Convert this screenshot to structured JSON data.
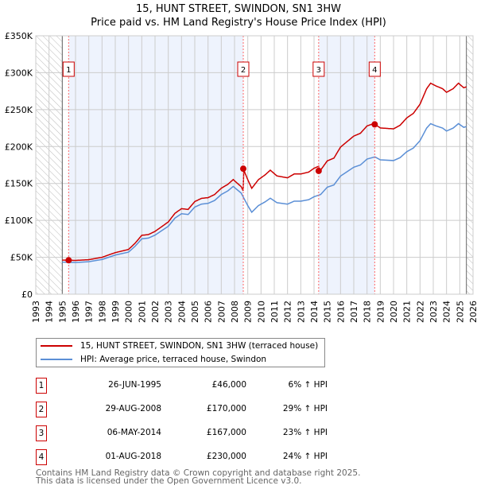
{
  "title": "15, HUNT STREET, SWINDON, SN1 3HW",
  "subtitle": "Price paid vs. HM Land Registry's House Price Index (HPI)",
  "colors": {
    "property": "#cc0000",
    "hpi": "#5b8fd6",
    "shade": "#eef3fd"
  },
  "chart_data": {
    "type": "line",
    "xlim": [
      1993,
      2026
    ],
    "ylim": [
      0,
      350000
    ],
    "yticks": [
      0,
      50000,
      100000,
      150000,
      200000,
      250000,
      300000,
      350000
    ],
    "ytick_labels": [
      "£0",
      "£50K",
      "£100K",
      "£150K",
      "£200K",
      "£250K",
      "£300K",
      "£350K"
    ],
    "xticks": [
      1993,
      1994,
      1995,
      1996,
      1997,
      1998,
      1999,
      2000,
      2001,
      2002,
      2003,
      2004,
      2005,
      2006,
      2007,
      2008,
      2009,
      2010,
      2011,
      2012,
      2013,
      2014,
      2015,
      2016,
      2017,
      2018,
      2019,
      2020,
      2021,
      2022,
      2023,
      2024,
      2025,
      2026
    ],
    "data_range": [
      1995,
      2025.5
    ],
    "hpi": {
      "name": "HPI: Average price, terraced house, Swindon",
      "x": [
        1995,
        1996,
        1997,
        1998,
        1999,
        2000,
        2000.5,
        2001,
        2001.5,
        2002,
        2002.5,
        2003,
        2003.5,
        2004,
        2004.5,
        2005,
        2005.5,
        2006,
        2006.5,
        2007,
        2007.5,
        2007.9,
        2008.5,
        2009,
        2009.3,
        2009.8,
        2010.3,
        2010.7,
        2011.2,
        2012,
        2012.5,
        2013,
        2013.6,
        2014,
        2014.5,
        2015,
        2015.5,
        2016,
        2016.5,
        2017,
        2017.5,
        2018,
        2018.6,
        2019,
        2020,
        2020.5,
        2021,
        2021.5,
        2022,
        2022.5,
        2022.8,
        2023.2,
        2023.7,
        2024,
        2024.5,
        2024.9,
        2025.3,
        2025.5
      ],
      "y": [
        43500,
        43000,
        44000,
        47000,
        53000,
        57000,
        65000,
        75000,
        76000,
        80000,
        86000,
        92000,
        103000,
        109000,
        108000,
        118000,
        122000,
        123000,
        127000,
        135000,
        140000,
        146000,
        137000,
        120000,
        111000,
        120000,
        125000,
        130000,
        124000,
        122000,
        126000,
        126000,
        128000,
        132000,
        135000,
        145000,
        148000,
        160000,
        166000,
        172000,
        175000,
        183000,
        186000,
        182000,
        181000,
        185000,
        193000,
        198000,
        208000,
        225000,
        231000,
        228000,
        225000,
        221000,
        225000,
        231000,
        226000,
        227000
      ]
    },
    "property": {
      "name": "15, HUNT STREET, SWINDON, SN1 3HW (terraced house)"
    },
    "sales": [
      {
        "label": "1",
        "x": 1995.48,
        "date": "26-JUN-1995",
        "price": 46000,
        "price_label": "£46,000",
        "hpi_label": "6% ↑ HPI"
      },
      {
        "label": "2",
        "x": 2008.66,
        "date": "29-AUG-2008",
        "price": 170000,
        "price_label": "£170,000",
        "hpi_label": "29% ↑ HPI"
      },
      {
        "label": "3",
        "x": 2014.35,
        "date": "06-MAY-2014",
        "price": 167000,
        "price_label": "£167,000",
        "hpi_label": "23% ↑ HPI"
      },
      {
        "label": "4",
        "x": 2018.58,
        "date": "01-AUG-2018",
        "price": 230000,
        "price_label": "£230,000",
        "hpi_label": "24% ↑ HPI"
      }
    ]
  },
  "footer": [
    "Contains HM Land Registry data © Crown copyright and database right 2025.",
    "This data is licensed under the Open Government Licence v3.0."
  ]
}
